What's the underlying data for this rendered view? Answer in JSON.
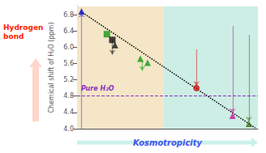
{
  "chart_data": {
    "type": "scatter",
    "ylabel": "Chemical shift of H₂O (ppm)",
    "xlim": [
      0,
      10
    ],
    "ylim": [
      4.0,
      7.0
    ],
    "yticks": [
      {
        "value": 4.0,
        "label": "4.0"
      },
      4.4,
      4.8,
      5.2,
      5.6,
      {
        "value": 6.0,
        "label": "6.0"
      },
      6.4,
      6.8
    ],
    "tick_labels": "y",
    "grid": false,
    "regions": [
      {
        "x": [
          0,
          4.8
        ],
        "color": "#f5e6c8"
      },
      {
        "x": [
          4.8,
          10
        ],
        "color": "#cdeee5"
      }
    ],
    "trendline": {
      "x": [
        0.2,
        9.85
      ],
      "y": [
        6.88,
        4.02
      ],
      "color": "#000000",
      "line_style": "dotted"
    },
    "hlines": [
      {
        "y": 4.8,
        "label": "Pure H₂O",
        "color": "#8833bb",
        "line_style": "dashed"
      }
    ],
    "points": [
      {
        "x": 0.25,
        "y": 6.88,
        "color": "#1111cc",
        "marker": "triangle"
      },
      {
        "x": 1.65,
        "y": 6.32,
        "color": "#119911",
        "marker": "square"
      },
      {
        "x": 1.95,
        "y": 6.18,
        "color": "#111111",
        "marker": "square"
      },
      {
        "x": 2.1,
        "y": 6.05,
        "color": "#111111",
        "marker": "triangle"
      },
      {
        "x": 3.5,
        "y": 5.72,
        "color": "#119911",
        "marker": "triangle"
      },
      {
        "x": 3.9,
        "y": 5.62,
        "color": "#119911",
        "marker": "triangle"
      },
      {
        "x": 6.6,
        "y": 5.0,
        "color": "#cc1111",
        "marker": "circle"
      },
      {
        "x": 8.6,
        "y": 4.32,
        "color": "#cc1199",
        "marker": "triangle"
      },
      {
        "x": 9.5,
        "y": 4.12,
        "color": "#446611",
        "marker": "triangle"
      }
    ],
    "arrows": [
      {
        "x": 0.25,
        "y_start": 4.0,
        "y_end": 6.85,
        "color": "#3344cc"
      },
      {
        "x": 1.95,
        "y_start": 6.18,
        "y_end": 5.82,
        "color": "#111111"
      },
      {
        "x": 3.6,
        "y_start": 5.68,
        "y_end": 5.42,
        "color": "#119911"
      },
      {
        "x": 6.6,
        "y_start": 5.95,
        "y_end": 5.05,
        "color": "#cc1111"
      },
      {
        "x": 8.6,
        "y_start": 6.52,
        "y_end": 4.38,
        "color": "#cc1199"
      },
      {
        "x": 9.5,
        "y_start": 6.3,
        "y_end": 4.18,
        "color": "#446611"
      }
    ],
    "annotations": [
      {
        "text": "Hydrogen\nbond",
        "color": "#ff2200",
        "axis": "y",
        "arrow_color": "#ffbbaa"
      },
      {
        "text": "Kosmotropicity",
        "color": "#4455ee",
        "axis": "x",
        "arrow_color": "#aae8dd"
      }
    ]
  }
}
